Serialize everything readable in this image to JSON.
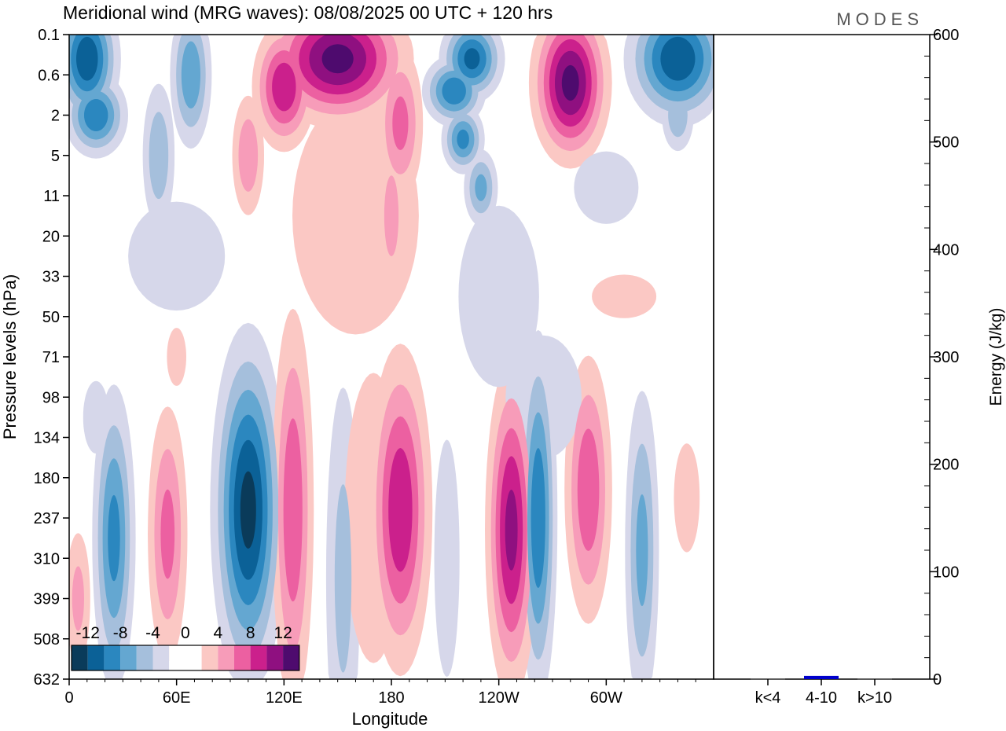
{
  "chart_data": [
    {
      "type": "heatmap",
      "title": "Meridional wind (MRG waves):  08/08/2025  00 UTC  + 120 hrs",
      "xlabel": "Longitude",
      "ylabel": "Pressure levels (hPa)",
      "x_ticks": [
        "0",
        "60E",
        "120E",
        "180",
        "120W",
        "60W"
      ],
      "x_tick_values": [
        0,
        60,
        120,
        180,
        240,
        300
      ],
      "xlim": [
        0,
        360
      ],
      "y_ticks": [
        "0.1",
        "0.6",
        "2",
        "5",
        "11",
        "20",
        "33",
        "50",
        "71",
        "98",
        "134",
        "180",
        "237",
        "310",
        "399",
        "508",
        "632"
      ],
      "colorbar": {
        "labels": [
          "-12",
          "-8",
          "-4",
          "0",
          "4",
          "8",
          "12"
        ],
        "neg_colors": [
          "#d6d7ea",
          "#a5bfdc",
          "#64a7d1",
          "#2b87bf",
          "#0b6197",
          "#0a3b5a"
        ],
        "pos_colors": [
          "#fbc8c4",
          "#f79cb9",
          "#ec60a1",
          "#cb208c",
          "#8f1080",
          "#4e0b6e"
        ],
        "thresholds": [
          2,
          4,
          6,
          8,
          10,
          12
        ]
      },
      "features": [
        {
          "lon": 25,
          "lev": 12.5,
          "amp": -9,
          "sx": 7,
          "sy": 2.2
        },
        {
          "lon": 100,
          "lev": 11.8,
          "amp": -13,
          "sx": 11,
          "sy": 2.4
        },
        {
          "lon": 153,
          "lev": 13.5,
          "amp": -5,
          "sx": 7,
          "sy": 3.5
        },
        {
          "lon": 211,
          "lev": 13,
          "amp": -4,
          "sx": 6,
          "sy": 2.5
        },
        {
          "lon": 262,
          "lev": 12,
          "amp": -10,
          "sx": 6,
          "sy": 2.6
        },
        {
          "lon": 320,
          "lev": 12.8,
          "amp": -7,
          "sx": 6,
          "sy": 2.5
        },
        {
          "lon": 15,
          "lev": 9.5,
          "amp": -3,
          "sx": 8,
          "sy": 1
        },
        {
          "lon": 55,
          "lev": 12.4,
          "amp": 7,
          "sx": 7,
          "sy": 2
        },
        {
          "lon": 125,
          "lev": 11.8,
          "amp": 8,
          "sx": 7,
          "sy": 3
        },
        {
          "lon": 185,
          "lev": 11.8,
          "amp": 10,
          "sx": 10,
          "sy": 2.3
        },
        {
          "lon": 247,
          "lev": 12.3,
          "amp": 11,
          "sx": 8,
          "sy": 2.3
        },
        {
          "lon": 290,
          "lev": 11.3,
          "amp": 8,
          "sx": 8,
          "sy": 2
        },
        {
          "lon": 345,
          "lev": 11.5,
          "amp": 3,
          "sx": 8,
          "sy": 1.5
        },
        {
          "lon": 5,
          "lev": 14,
          "amp": 5,
          "sx": 5,
          "sy": 1.2
        },
        {
          "lon": 170,
          "lev": 12,
          "amp": 3,
          "sx": 18,
          "sy": 4
        },
        {
          "lon": 150,
          "lev": 0.6,
          "amp": 13,
          "sx": 22,
          "sy": 0.9
        },
        {
          "lon": 120,
          "lev": 1.3,
          "amp": 10,
          "sx": 10,
          "sy": 0.9
        },
        {
          "lon": 185,
          "lev": 2.2,
          "amp": 7,
          "sx": 8,
          "sy": 1.2
        },
        {
          "lon": 280,
          "lev": 1.2,
          "amp": 13,
          "sx": 12,
          "sy": 1.1
        },
        {
          "lon": 160,
          "lev": 4.5,
          "amp": 4,
          "sx": 30,
          "sy": 2.5
        },
        {
          "lon": 180,
          "lev": 4.5,
          "amp": 5,
          "sx": 6,
          "sy": 1.5
        },
        {
          "lon": 100,
          "lev": 3,
          "amp": 6,
          "sx": 6,
          "sy": 1
        },
        {
          "lon": 10,
          "lev": 0.6,
          "amp": -12,
          "sx": 10,
          "sy": 0.9
        },
        {
          "lon": 15,
          "lev": 2,
          "amp": -10,
          "sx": 10,
          "sy": 0.6
        },
        {
          "lon": 68,
          "lev": 1,
          "amp": -8,
          "sx": 7,
          "sy": 1.1
        },
        {
          "lon": 50,
          "lev": 3,
          "amp": -6,
          "sx": 6,
          "sy": 1.2
        },
        {
          "lon": 225,
          "lev": 0.6,
          "amp": -11,
          "sx": 10,
          "sy": 0.6
        },
        {
          "lon": 215,
          "lev": 1.4,
          "amp": -10,
          "sx": 10,
          "sy": 0.5
        },
        {
          "lon": 220,
          "lev": 2.6,
          "amp": -9,
          "sx": 7,
          "sy": 0.5
        },
        {
          "lon": 230,
          "lev": 3.8,
          "amp": -7,
          "sx": 6,
          "sy": 0.6
        },
        {
          "lon": 340,
          "lev": 0.6,
          "amp": -12,
          "sx": 16,
          "sy": 0.9
        },
        {
          "lon": 340,
          "lev": 2,
          "amp": -6,
          "sx": 6,
          "sy": 0.6
        },
        {
          "lon": 60,
          "lev": 5.5,
          "amp": -3,
          "sx": 30,
          "sy": 1.5
        },
        {
          "lon": 240,
          "lev": 6.5,
          "amp": -3,
          "sx": 25,
          "sy": 2.5
        },
        {
          "lon": 265,
          "lev": 9,
          "amp": -4,
          "sx": 18,
          "sy": 1.3
        },
        {
          "lon": 300,
          "lev": 3.8,
          "amp": -3,
          "sx": 20,
          "sy": 1
        },
        {
          "lon": 310,
          "lev": 6.5,
          "amp": 3,
          "sx": 20,
          "sy": 0.6
        },
        {
          "lon": 60,
          "lev": 8,
          "amp": 3,
          "sx": 6,
          "sy": 0.8
        }
      ]
    },
    {
      "type": "bar",
      "ylabel": "Energy (J/kg)",
      "ylim": [
        0,
        600
      ],
      "y_ticks": [
        "0",
        "100",
        "200",
        "300",
        "400",
        "500",
        "600"
      ],
      "categories": [
        "k<4",
        "4-10",
        "k>10"
      ],
      "values": [
        0.5,
        3,
        0.5
      ],
      "bar_colors": [
        "#555555",
        "#0000cc",
        "#555555"
      ]
    }
  ],
  "logo": "MODES"
}
